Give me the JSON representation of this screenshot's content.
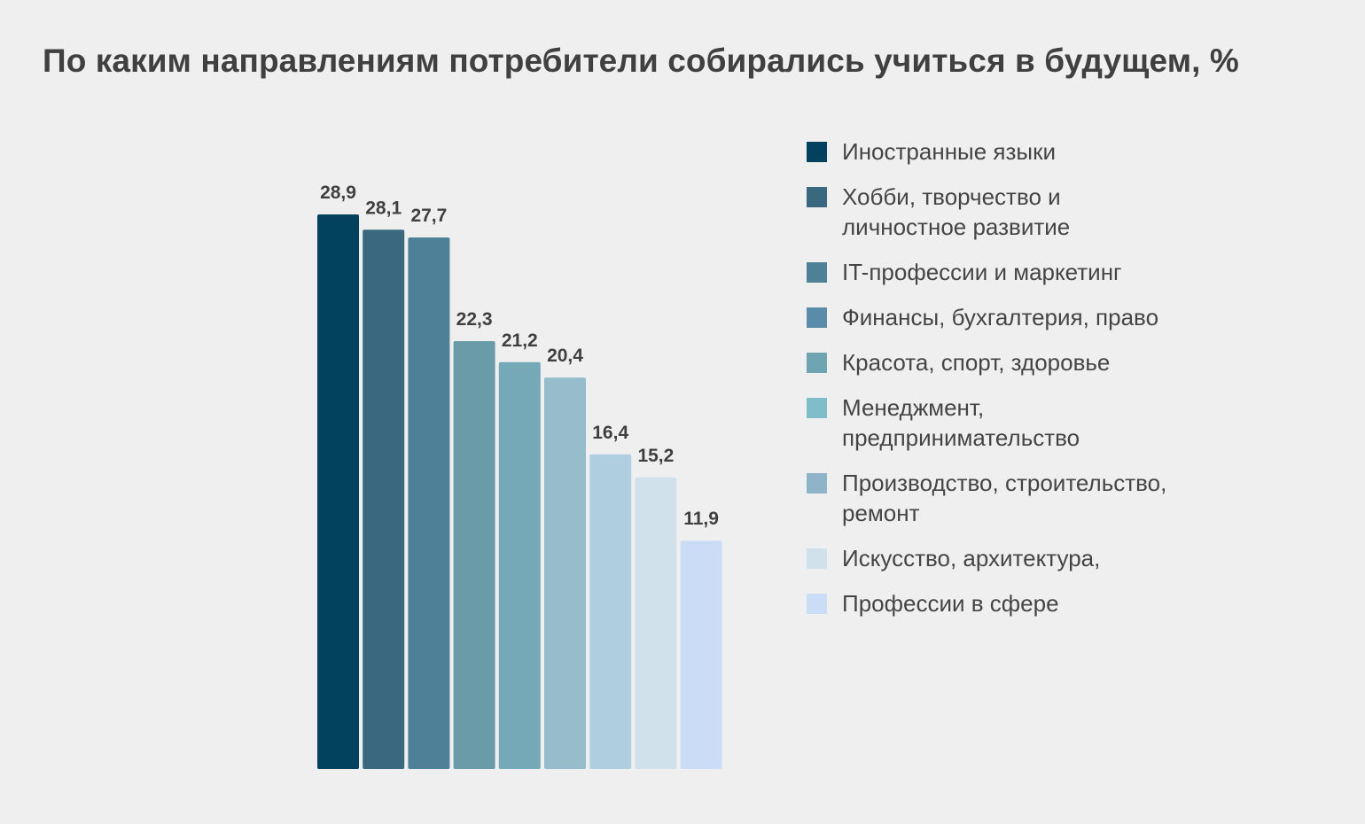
{
  "chart_data": {
    "type": "bar",
    "title": "По каким направлениям потребители собирались учиться в будущем, %",
    "xlabel": "",
    "ylabel": "",
    "ylim": [
      0,
      28.9
    ],
    "grid": false,
    "legend_position": "right",
    "categories": [
      "Иностранные языки",
      "Хобби, творчество и личностное развитие",
      "IT-профессии и маркетинг",
      "Финансы, бухгалтерия, право",
      "Красота, спорт, здоровье",
      "Менеджмент, предпринимательство",
      "Производство, строительство, ремонт",
      "Искусство, архитектура,",
      "Профессии в сфере"
    ],
    "values": [
      28.9,
      28.1,
      27.7,
      22.3,
      21.2,
      20.4,
      16.4,
      15.2,
      11.9
    ],
    "value_labels": [
      "28,9",
      "28,1",
      "27,7",
      "22,3",
      "21,2",
      "20,4",
      "16,4",
      "15,2",
      "11,9"
    ],
    "bar_colors": [
      "#03425e",
      "#3a687e",
      "#4e8197",
      "#6a9ba8",
      "#76a9b7",
      "#97bdca",
      "#afcfe1",
      "#d1e1ec",
      "#cbdcf7"
    ],
    "legend_colors": [
      "#03425e",
      "#3a687e",
      "#4e8197",
      "#5a8ba8",
      "#6fa5b3",
      "#7fbdca",
      "#8fb3c8",
      "#d1e1ec",
      "#cbdcf7"
    ]
  }
}
